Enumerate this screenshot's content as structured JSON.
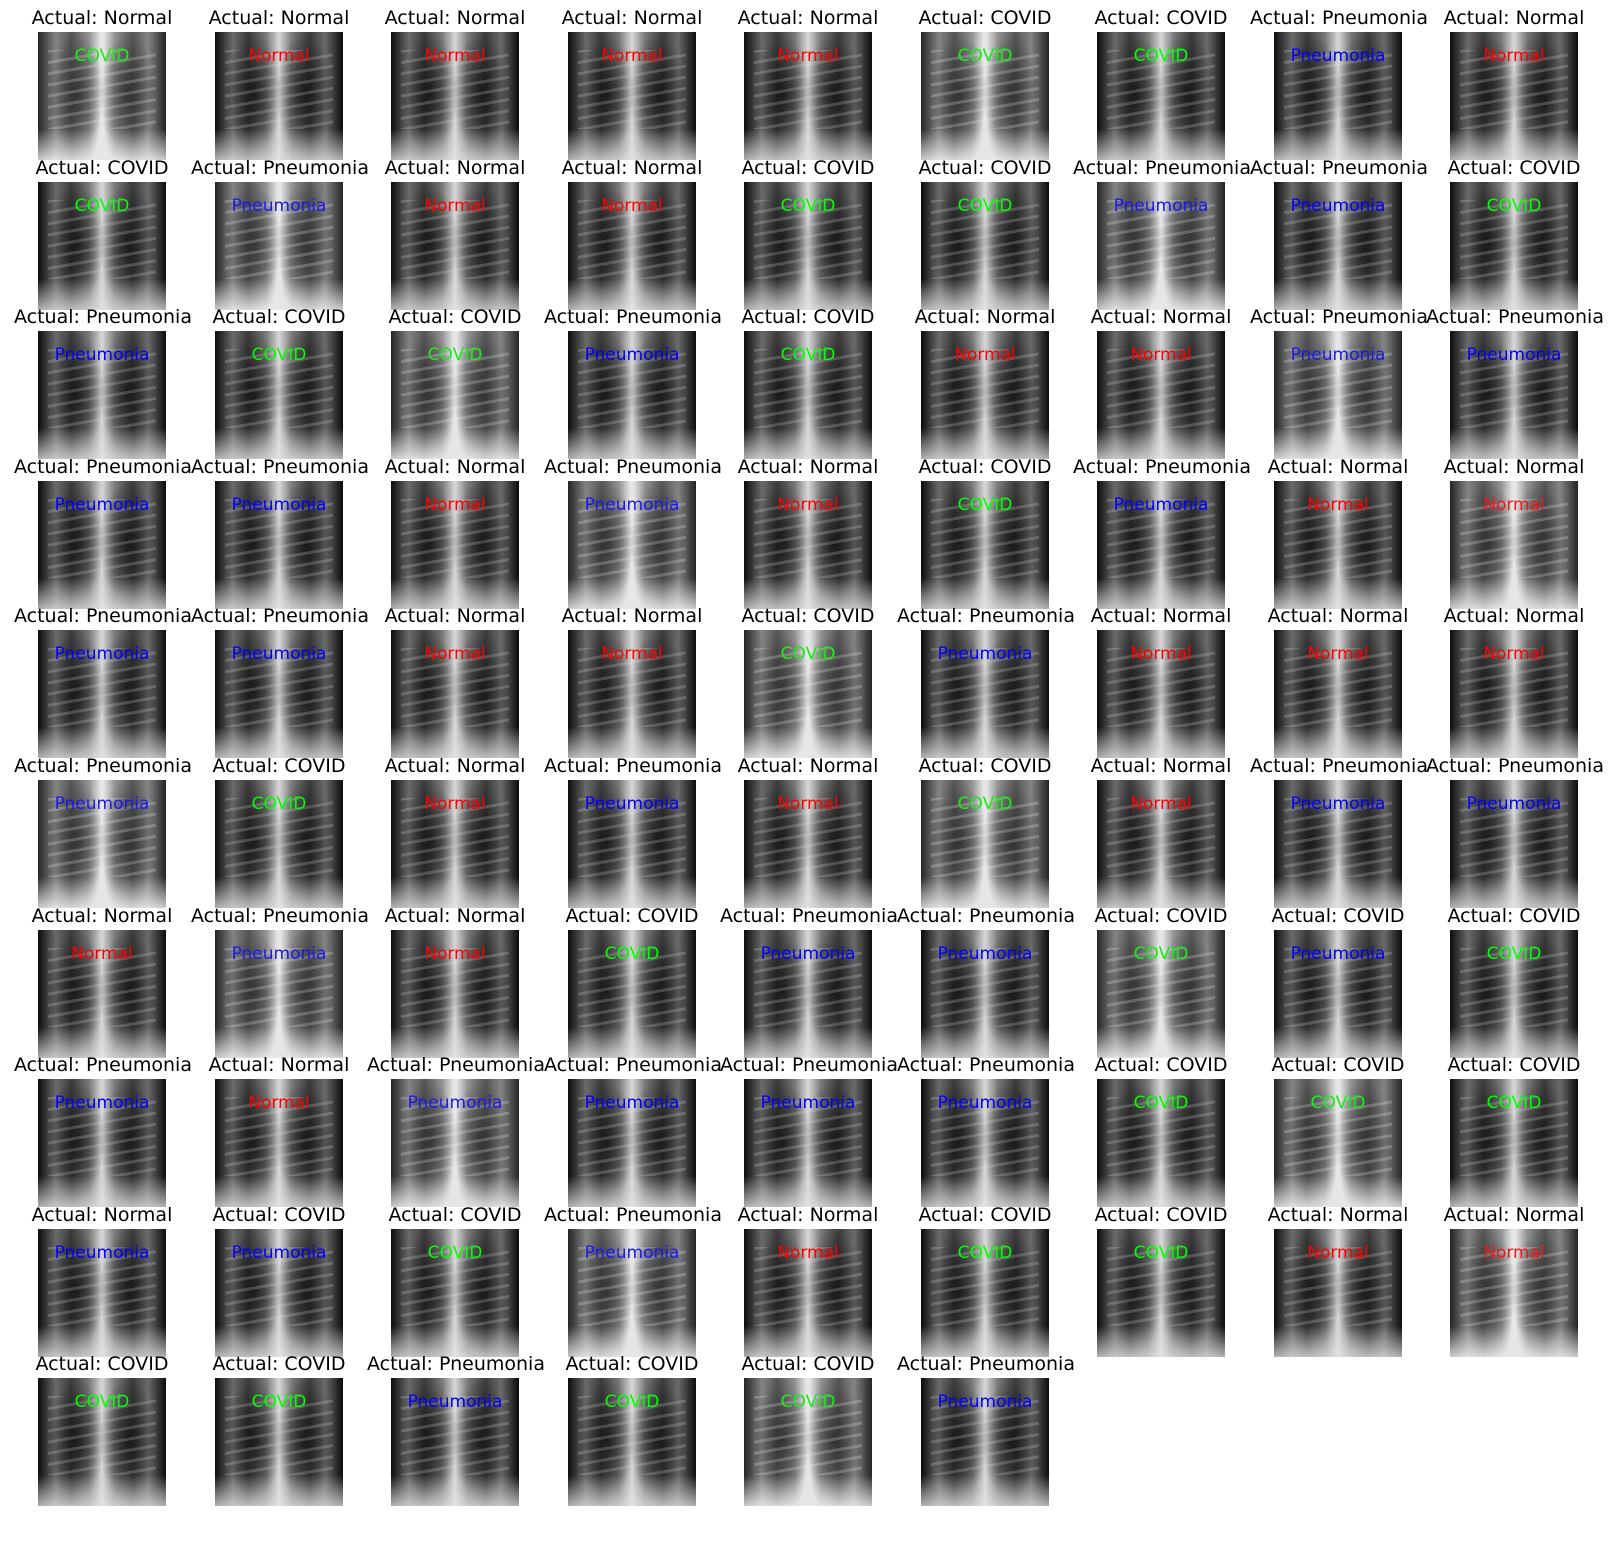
{
  "colors": {
    "COVID": "#00ff00",
    "Normal": "#ff0000",
    "Pneumonia": "#0000ff",
    "title": "#000000",
    "background": "#ffffff"
  },
  "title_prefix": "Actual: ",
  "panels": [
    {
      "actual": "Normal",
      "predicted": "COVID"
    },
    {
      "actual": "Normal",
      "predicted": "Normal"
    },
    {
      "actual": "Normal",
      "predicted": "Normal"
    },
    {
      "actual": "Normal",
      "predicted": "Normal"
    },
    {
      "actual": "Normal",
      "predicted": "Normal"
    },
    {
      "actual": "COVID",
      "predicted": "COVID"
    },
    {
      "actual": "COVID",
      "predicted": "COVID"
    },
    {
      "actual": "Pneumonia",
      "predicted": "Pneumonia"
    },
    {
      "actual": "Normal",
      "predicted": "Normal"
    },
    {
      "actual": "COVID",
      "predicted": "COVID"
    },
    {
      "actual": "Pneumonia",
      "predicted": "Pneumonia"
    },
    {
      "actual": "Normal",
      "predicted": "Normal"
    },
    {
      "actual": "Normal",
      "predicted": "Normal"
    },
    {
      "actual": "COVID",
      "predicted": "COVID"
    },
    {
      "actual": "COVID",
      "predicted": "COVID"
    },
    {
      "actual": "Pneumonia",
      "predicted": "Pneumonia"
    },
    {
      "actual": "Pneumonia",
      "predicted": "Pneumonia"
    },
    {
      "actual": "COVID",
      "predicted": "COVID"
    },
    {
      "actual": "Pneumonia",
      "predicted": "Pneumonia"
    },
    {
      "actual": "COVID",
      "predicted": "COVID"
    },
    {
      "actual": "COVID",
      "predicted": "COVID"
    },
    {
      "actual": "Pneumonia",
      "predicted": "Pneumonia"
    },
    {
      "actual": "COVID",
      "predicted": "COVID"
    },
    {
      "actual": "Normal",
      "predicted": "Normal"
    },
    {
      "actual": "Normal",
      "predicted": "Normal"
    },
    {
      "actual": "Pneumonia",
      "predicted": "Pneumonia"
    },
    {
      "actual": "Pneumonia",
      "predicted": "Pneumonia"
    },
    {
      "actual": "Pneumonia",
      "predicted": "Pneumonia"
    },
    {
      "actual": "Pneumonia",
      "predicted": "Pneumonia"
    },
    {
      "actual": "Normal",
      "predicted": "Normal"
    },
    {
      "actual": "Pneumonia",
      "predicted": "Pneumonia"
    },
    {
      "actual": "Normal",
      "predicted": "Normal"
    },
    {
      "actual": "COVID",
      "predicted": "COVID"
    },
    {
      "actual": "Pneumonia",
      "predicted": "Pneumonia"
    },
    {
      "actual": "Normal",
      "predicted": "Normal"
    },
    {
      "actual": "Normal",
      "predicted": "Normal"
    },
    {
      "actual": "Pneumonia",
      "predicted": "Pneumonia"
    },
    {
      "actual": "Pneumonia",
      "predicted": "Pneumonia"
    },
    {
      "actual": "Normal",
      "predicted": "Normal"
    },
    {
      "actual": "Normal",
      "predicted": "Normal"
    },
    {
      "actual": "COVID",
      "predicted": "COVID"
    },
    {
      "actual": "Pneumonia",
      "predicted": "Pneumonia"
    },
    {
      "actual": "Normal",
      "predicted": "Normal"
    },
    {
      "actual": "Normal",
      "predicted": "Normal"
    },
    {
      "actual": "Normal",
      "predicted": "Normal"
    },
    {
      "actual": "Pneumonia",
      "predicted": "Pneumonia"
    },
    {
      "actual": "COVID",
      "predicted": "COVID"
    },
    {
      "actual": "Normal",
      "predicted": "Normal"
    },
    {
      "actual": "Pneumonia",
      "predicted": "Pneumonia"
    },
    {
      "actual": "Normal",
      "predicted": "Normal"
    },
    {
      "actual": "COVID",
      "predicted": "COVID"
    },
    {
      "actual": "Normal",
      "predicted": "Normal"
    },
    {
      "actual": "Pneumonia",
      "predicted": "Pneumonia"
    },
    {
      "actual": "Pneumonia",
      "predicted": "Pneumonia"
    },
    {
      "actual": "Normal",
      "predicted": "Normal"
    },
    {
      "actual": "Pneumonia",
      "predicted": "Pneumonia"
    },
    {
      "actual": "Normal",
      "predicted": "Normal"
    },
    {
      "actual": "COVID",
      "predicted": "COVID"
    },
    {
      "actual": "Pneumonia",
      "predicted": "Pneumonia"
    },
    {
      "actual": "Pneumonia",
      "predicted": "Pneumonia"
    },
    {
      "actual": "COVID",
      "predicted": "COVID"
    },
    {
      "actual": "COVID",
      "predicted": "Pneumonia"
    },
    {
      "actual": "COVID",
      "predicted": "COVID"
    },
    {
      "actual": "Pneumonia",
      "predicted": "Pneumonia"
    },
    {
      "actual": "Normal",
      "predicted": "Normal"
    },
    {
      "actual": "Pneumonia",
      "predicted": "Pneumonia"
    },
    {
      "actual": "Pneumonia",
      "predicted": "Pneumonia"
    },
    {
      "actual": "Pneumonia",
      "predicted": "Pneumonia"
    },
    {
      "actual": "Pneumonia",
      "predicted": "Pneumonia"
    },
    {
      "actual": "COVID",
      "predicted": "COVID"
    },
    {
      "actual": "COVID",
      "predicted": "COVID"
    },
    {
      "actual": "COVID",
      "predicted": "COVID"
    },
    {
      "actual": "Normal",
      "predicted": "Pneumonia"
    },
    {
      "actual": "COVID",
      "predicted": "Pneumonia"
    },
    {
      "actual": "COVID",
      "predicted": "COVID"
    },
    {
      "actual": "Pneumonia",
      "predicted": "Pneumonia"
    },
    {
      "actual": "Normal",
      "predicted": "Normal"
    },
    {
      "actual": "COVID",
      "predicted": "COVID"
    },
    {
      "actual": "COVID",
      "predicted": "COVID"
    },
    {
      "actual": "Normal",
      "predicted": "Normal"
    },
    {
      "actual": "Normal",
      "predicted": "Normal"
    },
    {
      "actual": "COVID",
      "predicted": "COVID"
    },
    {
      "actual": "COVID",
      "predicted": "COVID"
    },
    {
      "actual": "Pneumonia",
      "predicted": "Pneumonia"
    },
    {
      "actual": "COVID",
      "predicted": "COVID"
    },
    {
      "actual": "COVID",
      "predicted": "COVID"
    },
    {
      "actual": "Pneumonia",
      "predicted": "Pneumonia"
    }
  ]
}
